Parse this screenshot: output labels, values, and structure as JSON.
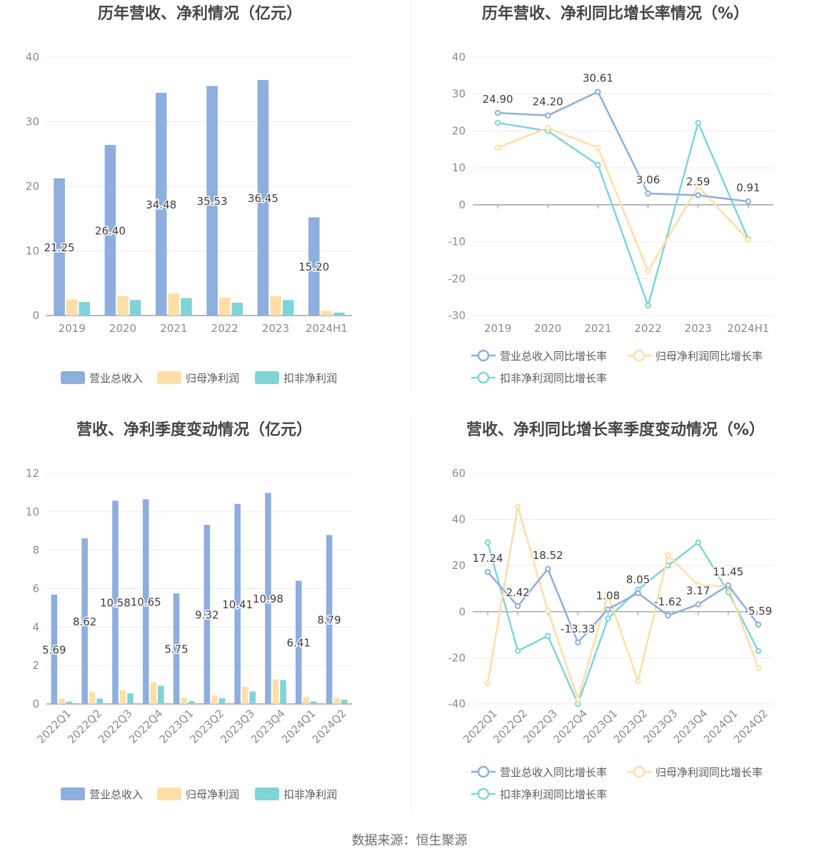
{
  "colors": {
    "revenue": "#8eaedd",
    "net_profit": "#ffdfa8",
    "deducted_profit": "#80d4d8",
    "grid": "#e8ebf2",
    "axis": "#888f99",
    "divider": "#eeeeee"
  },
  "footer": "数据来源：恒生聚源",
  "chart_data": [
    {
      "type": "bar",
      "title": "历年营收、净利情况（亿元）",
      "categories": [
        "2019",
        "2020",
        "2021",
        "2022",
        "2023",
        "2024H1"
      ],
      "ylim": [
        0,
        40
      ],
      "yticks": [
        0,
        10,
        20,
        30,
        40
      ],
      "grid": true,
      "legend_position": "bottom",
      "series": [
        {
          "name": "营业总收入",
          "color_key": "revenue",
          "labels": true,
          "values": [
            21.25,
            26.4,
            34.48,
            35.53,
            36.45,
            15.2
          ],
          "label_texts": [
            "21.25",
            "26.40",
            "34.48",
            "35.53",
            "36.45",
            "15.20"
          ]
        },
        {
          "name": "归母净利润",
          "color_key": "net_profit",
          "values": [
            2.5,
            3.0,
            3.4,
            2.8,
            3.0,
            0.75
          ]
        },
        {
          "name": "扣非净利润",
          "color_key": "deducted_profit",
          "values": [
            2.1,
            2.4,
            2.7,
            2.0,
            2.4,
            0.45
          ]
        }
      ]
    },
    {
      "type": "line",
      "title": "历年营收、净利同比增长率情况（%）",
      "categories": [
        "2019",
        "2020",
        "2021",
        "2022",
        "2023",
        "2024H1"
      ],
      "ylim": [
        -30,
        40
      ],
      "yticks": [
        -30,
        -20,
        -10,
        0,
        10,
        20,
        30,
        40
      ],
      "grid": true,
      "legend_position": "bottom",
      "series": [
        {
          "name": "营业总收入同比增长率",
          "color_key": "revenue",
          "labels": true,
          "values": [
            24.9,
            24.2,
            30.61,
            3.06,
            2.59,
            0.91
          ],
          "label_texts": [
            "24.90",
            "24.20",
            "30.61",
            "3.06",
            "2.59",
            "0.91"
          ]
        },
        {
          "name": "归母净利润同比增长率",
          "color_key": "net_profit",
          "values": [
            15.5,
            20.8,
            15.5,
            -18.0,
            5.0,
            -9.5
          ]
        },
        {
          "name": "扣非净利润同比增长率",
          "color_key": "deducted_profit",
          "values": [
            22.2,
            20.0,
            10.8,
            -27.3,
            22.2,
            -9.3
          ]
        }
      ]
    },
    {
      "type": "bar",
      "title": "营收、净利季度变动情况（亿元）",
      "categories": [
        "2022Q1",
        "2022Q2",
        "2022Q3",
        "2022Q4",
        "2023Q1",
        "2023Q2",
        "2023Q3",
        "2023Q4",
        "2024Q1",
        "2024Q2"
      ],
      "ylim": [
        0,
        12
      ],
      "yticks": [
        0,
        2,
        4,
        6,
        8,
        10,
        12
      ],
      "grid": true,
      "legend_position": "bottom",
      "series": [
        {
          "name": "营业总收入",
          "color_key": "revenue",
          "labels": true,
          "values": [
            5.69,
            8.62,
            10.58,
            10.65,
            5.75,
            9.32,
            10.41,
            10.98,
            6.41,
            8.79
          ],
          "label_texts": [
            "5.69",
            "8.62",
            "10.58",
            "10.65",
            "5.75",
            "9.32",
            "10.41",
            "10.98",
            "6.41",
            "8.79"
          ]
        },
        {
          "name": "归母净利润",
          "color_key": "net_profit",
          "values": [
            0.28,
            0.62,
            0.72,
            1.13,
            0.32,
            0.44,
            0.9,
            1.28,
            0.36,
            0.32
          ]
        },
        {
          "name": "扣非净利润",
          "color_key": "deducted_profit",
          "values": [
            0.12,
            0.28,
            0.55,
            0.95,
            0.14,
            0.3,
            0.65,
            1.24,
            0.13,
            0.22
          ]
        }
      ]
    },
    {
      "type": "line",
      "title": "营收、净利同比增长率季度变动情况（%）",
      "categories": [
        "2022Q1",
        "2022Q2",
        "2022Q3",
        "2022Q4",
        "2023Q1",
        "2023Q2",
        "2023Q3",
        "2023Q4",
        "2024Q1",
        "2024Q2"
      ],
      "ylim": [
        -40,
        60
      ],
      "yticks": [
        -40,
        -20,
        0,
        20,
        40,
        60
      ],
      "grid": true,
      "legend_position": "bottom",
      "series": [
        {
          "name": "营业总收入同比增长率",
          "color_key": "revenue",
          "labels": true,
          "values": [
            17.24,
            2.42,
            18.52,
            -13.33,
            1.08,
            8.05,
            -1.62,
            3.17,
            11.45,
            -5.59
          ],
          "label_texts": [
            "17.24",
            "2.42",
            "18.52",
            "-13.33",
            "1.08",
            "8.05",
            "-1.62",
            "3.17",
            "11.45",
            "-5.59"
          ]
        },
        {
          "name": "归母净利润同比增长率",
          "color_key": "net_profit",
          "values": [
            -31.0,
            45.5,
            0.5,
            -38.0,
            7.5,
            -30.0,
            24.5,
            11.5,
            11.0,
            -24.5
          ]
        },
        {
          "name": "扣非净利润同比增长率",
          "color_key": "deducted_profit",
          "values": [
            30.0,
            -17.0,
            -10.5,
            -40.0,
            -3.0,
            9.5,
            20.0,
            30.0,
            8.5,
            -17.0
          ]
        }
      ]
    }
  ]
}
